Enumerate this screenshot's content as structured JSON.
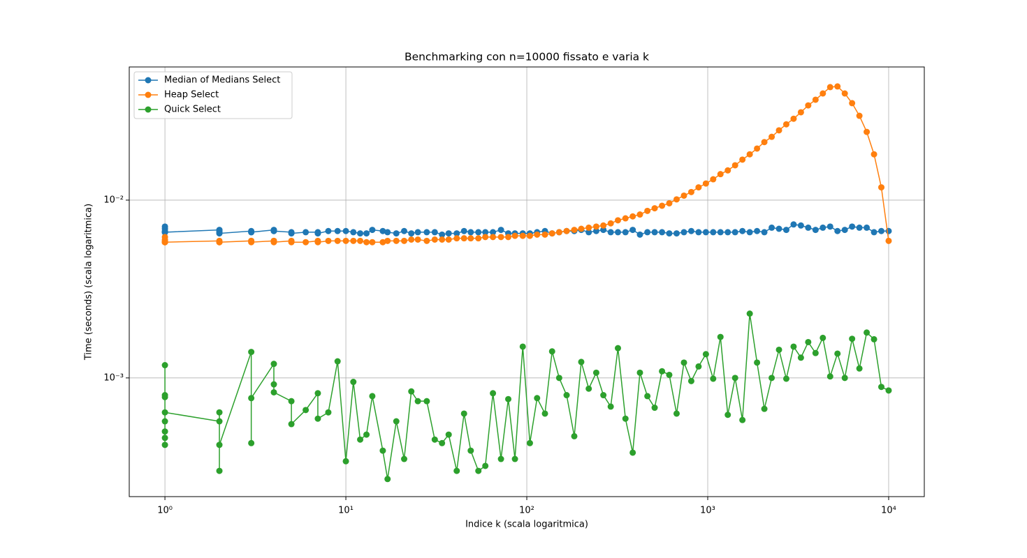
{
  "chart_data": {
    "type": "line",
    "title": "Benchmarking con n=10000 fissato e varia k",
    "x_label": "Indice k (scala logaritmica)",
    "y_label": "Time (seconds) (scala logaritmica)",
    "x_scale": "log",
    "y_scale": "log",
    "grid": true,
    "legend": "upper left",
    "xlim": [
      0.635,
      15740
    ],
    "ylim": [
      0.000215,
      0.0561
    ],
    "xticks": [
      {
        "value": 1,
        "label": "10⁰"
      },
      {
        "value": 10,
        "label": "10¹"
      },
      {
        "value": 100,
        "label": "10²"
      },
      {
        "value": 1000,
        "label": "10³"
      },
      {
        "value": 10000,
        "label": "10⁴"
      }
    ],
    "yticks": [
      {
        "value": 0.001,
        "label": "10⁻³"
      },
      {
        "value": 0.01,
        "label": "10⁻²"
      }
    ],
    "x": [
      1,
      1,
      1,
      1,
      1,
      1,
      1,
      1,
      2,
      2,
      2,
      2,
      3,
      3,
      3,
      4,
      4,
      4,
      5,
      5,
      6,
      7,
      7,
      8,
      9,
      10,
      11,
      12,
      13,
      14,
      16,
      17,
      19,
      21,
      23,
      25,
      28,
      31,
      34,
      37,
      41,
      45,
      49,
      54,
      59,
      65,
      72,
      79,
      86,
      95,
      104,
      114,
      126,
      138,
      151,
      166,
      183,
      200,
      220,
      242,
      265,
      291,
      319,
      351,
      385,
      422,
      464,
      509,
      559,
      613,
      673,
      739,
      811,
      890,
      977,
      1072,
      1176,
      1291,
      1417,
      1555,
      1707,
      1873,
      2056,
      2257,
      2477,
      2718,
      2983,
      3274,
      3593,
      3944,
      4328,
      4750,
      5214,
      5722,
      6280,
      6892,
      7564,
      8302,
      9111,
      10000
    ],
    "series": [
      {
        "name": "Median of Medians Select",
        "color": "#1f77b4",
        "values": [
          0.0071,
          0.0069,
          0.0067,
          0.0066,
          0.0066,
          0.0066,
          0.0066,
          0.0066,
          0.0068,
          0.0067,
          0.0066,
          0.0065,
          0.0067,
          0.0066,
          0.0066,
          0.0068,
          0.0067,
          0.0067,
          0.0066,
          0.0065,
          0.0066,
          0.0066,
          0.0065,
          0.0067,
          0.0067,
          0.0067,
          0.0066,
          0.0065,
          0.0065,
          0.0068,
          0.0067,
          0.0066,
          0.0065,
          0.0067,
          0.0065,
          0.0066,
          0.0066,
          0.0066,
          0.0064,
          0.0065,
          0.0065,
          0.0067,
          0.0066,
          0.0066,
          0.0066,
          0.0066,
          0.0068,
          0.0065,
          0.0065,
          0.0065,
          0.0065,
          0.0066,
          0.0067,
          0.0065,
          0.0066,
          0.0067,
          0.0067,
          0.0068,
          0.0066,
          0.0067,
          0.0068,
          0.0066,
          0.0066,
          0.0066,
          0.0068,
          0.0064,
          0.0066,
          0.0066,
          0.0066,
          0.0065,
          0.0065,
          0.0066,
          0.0067,
          0.0066,
          0.0066,
          0.0066,
          0.0066,
          0.0066,
          0.0066,
          0.0067,
          0.0066,
          0.0067,
          0.0066,
          0.007,
          0.0069,
          0.0068,
          0.0073,
          0.0072,
          0.007,
          0.0068,
          0.007,
          0.0071,
          0.0067,
          0.0068,
          0.0071,
          0.007,
          0.007,
          0.0066,
          0.0067,
          0.0067
        ]
      },
      {
        "name": "Heap Select",
        "color": "#ff7f0e",
        "values": [
          0.0062,
          0.006,
          0.0059,
          0.0058,
          0.0058,
          0.0058,
          0.0058,
          0.0058,
          0.0059,
          0.0058,
          0.0058,
          0.0058,
          0.0059,
          0.0059,
          0.0058,
          0.0059,
          0.0059,
          0.0058,
          0.0059,
          0.0058,
          0.0058,
          0.0059,
          0.0058,
          0.0059,
          0.0059,
          0.0059,
          0.0059,
          0.0059,
          0.0058,
          0.0058,
          0.0058,
          0.0059,
          0.0059,
          0.0059,
          0.006,
          0.006,
          0.0059,
          0.006,
          0.006,
          0.006,
          0.0061,
          0.0061,
          0.0061,
          0.0061,
          0.0062,
          0.0062,
          0.0062,
          0.0062,
          0.0063,
          0.0063,
          0.0063,
          0.0064,
          0.0064,
          0.0065,
          0.0066,
          0.0067,
          0.0068,
          0.0069,
          0.007,
          0.0071,
          0.0072,
          0.0074,
          0.0077,
          0.0079,
          0.0081,
          0.0083,
          0.0087,
          0.009,
          0.0093,
          0.0096,
          0.0101,
          0.0106,
          0.0111,
          0.0118,
          0.0124,
          0.0131,
          0.014,
          0.0147,
          0.0157,
          0.0169,
          0.0181,
          0.0195,
          0.0212,
          0.0227,
          0.0247,
          0.0267,
          0.0287,
          0.0312,
          0.0341,
          0.0367,
          0.0398,
          0.0432,
          0.0436,
          0.0398,
          0.0351,
          0.0298,
          0.0242,
          0.0181,
          0.0118,
          0.0059
        ]
      },
      {
        "name": "Quick Select",
        "color": "#2ca02c",
        "values": [
          0.00046,
          0.00118,
          0.0005,
          0.0008,
          0.00042,
          0.00078,
          0.00057,
          0.00064,
          0.00057,
          0.0003,
          0.00064,
          0.00042,
          0.0014,
          0.00043,
          0.00077,
          0.0012,
          0.00092,
          0.00083,
          0.00074,
          0.00055,
          0.00066,
          0.00082,
          0.00059,
          0.00064,
          0.00124,
          0.00034,
          0.00095,
          0.00045,
          0.00048,
          0.00079,
          0.00039,
          0.00027,
          0.00057,
          0.00035,
          0.00084,
          0.00074,
          0.00074,
          0.00045,
          0.00043,
          0.00048,
          0.0003,
          0.00063,
          0.00039,
          0.0003,
          0.00032,
          0.00082,
          0.00035,
          0.00076,
          0.00035,
          0.0015,
          0.00043,
          0.00077,
          0.00063,
          0.00141,
          0.001,
          0.0008,
          0.00047,
          0.00123,
          0.00087,
          0.00107,
          0.0008,
          0.00069,
          0.00147,
          0.00059,
          0.00038,
          0.00107,
          0.00079,
          0.00068,
          0.00109,
          0.00104,
          0.00063,
          0.00122,
          0.00096,
          0.00116,
          0.00136,
          0.00099,
          0.0017,
          0.00062,
          0.001,
          0.00058,
          0.0023,
          0.00122,
          0.00067,
          0.001,
          0.00144,
          0.00099,
          0.0015,
          0.0013,
          0.00159,
          0.00138,
          0.00168,
          0.00102,
          0.00137,
          0.001,
          0.00166,
          0.00113,
          0.0018,
          0.00165,
          0.00089,
          0.00085
        ]
      }
    ]
  }
}
